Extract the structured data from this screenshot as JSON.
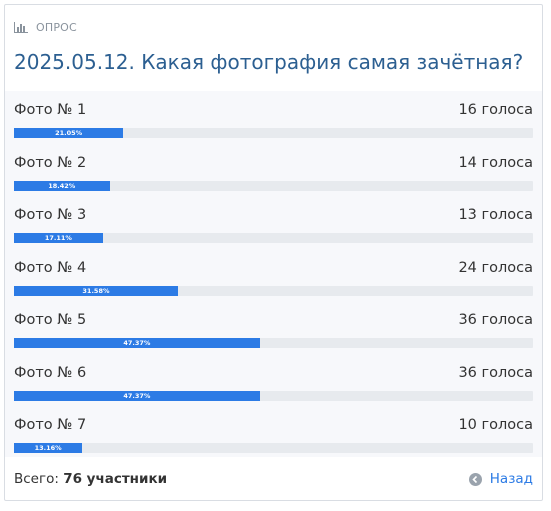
{
  "header": {
    "label": "ОПРОС",
    "icon": "bar-chart-icon"
  },
  "poll": {
    "question": "2025.05.12. Какая фотография самая зачётная?",
    "options": [
      {
        "label": "Фото № 1",
        "votes": "16 голоса",
        "percent": "21.05%",
        "fraction": 0.2105
      },
      {
        "label": "Фото № 2",
        "votes": "14 голоса",
        "percent": "18.42%",
        "fraction": 0.1842
      },
      {
        "label": "Фото № 3",
        "votes": "13 голоса",
        "percent": "17.11%",
        "fraction": 0.1711
      },
      {
        "label": "Фото № 4",
        "votes": "24 голоса",
        "percent": "31.58%",
        "fraction": 0.3158
      },
      {
        "label": "Фото № 5",
        "votes": "36 голоса",
        "percent": "47.37%",
        "fraction": 0.4737
      },
      {
        "label": "Фото № 6",
        "votes": "36 голоса",
        "percent": "47.37%",
        "fraction": 0.4737
      },
      {
        "label": "Фото № 7",
        "votes": "10 голоса",
        "percent": "13.16%",
        "fraction": 0.1316
      }
    ]
  },
  "footer": {
    "total_label": "Всего:",
    "total_value": "76 участники",
    "back_label": "Назад",
    "back_icon": "arrow-left-circle-icon"
  },
  "colors": {
    "accent": "#2c7be5",
    "title": "#2c5f91",
    "track": "#e7eaee"
  }
}
